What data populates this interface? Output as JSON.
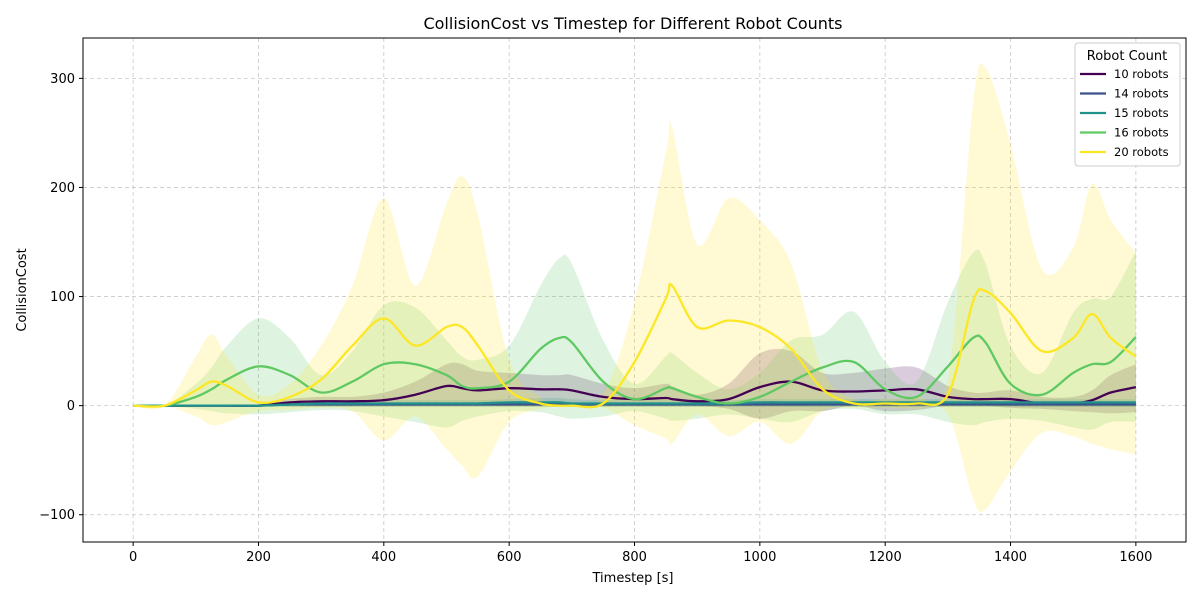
{
  "chart_data": {
    "type": "line",
    "title": "CollisionCost vs Timestep for Different Robot Counts",
    "xlabel": "Timestep [s]",
    "ylabel": "CollisionCost",
    "xlim": [
      -80,
      1680
    ],
    "ylim": [
      -125,
      337
    ],
    "xticks": [
      0,
      200,
      400,
      600,
      800,
      1000,
      1200,
      1400,
      1600
    ],
    "yticks": [
      -100,
      0,
      100,
      200,
      300
    ],
    "grid": true,
    "legend": {
      "title": "Robot Count",
      "placement": "top-right"
    },
    "x": [
      0,
      50,
      100,
      125,
      150,
      200,
      250,
      300,
      350,
      400,
      450,
      500,
      525,
      550,
      600,
      650,
      680,
      700,
      750,
      800,
      850,
      860,
      900,
      950,
      1000,
      1050,
      1100,
      1150,
      1200,
      1250,
      1300,
      1340,
      1360,
      1400,
      1450,
      1500,
      1530,
      1560,
      1600
    ],
    "series": [
      {
        "name": "10 robots",
        "color": "#440154",
        "values": [
          0,
          0,
          0,
          0,
          0,
          0,
          3,
          4,
          4,
          5,
          10,
          18,
          16,
          14,
          16,
          15,
          15,
          14,
          8,
          6,
          7,
          6,
          4,
          6,
          17,
          22,
          14,
          13,
          14,
          15,
          8,
          6,
          6,
          6,
          2,
          2,
          5,
          12,
          17
        ],
        "lower": [
          0,
          0,
          0,
          0,
          0,
          0,
          0,
          0,
          0,
          0,
          0,
          0,
          0,
          0,
          0,
          0,
          0,
          0,
          0,
          0,
          0,
          0,
          0,
          -3,
          -12,
          -5,
          -5,
          0,
          -5,
          -4,
          0,
          0,
          0,
          -2,
          -3,
          -5,
          -6,
          -7,
          -6
        ],
        "upper": [
          0,
          0,
          0,
          0,
          0,
          0,
          6,
          8,
          8,
          12,
          22,
          38,
          38,
          32,
          30,
          28,
          28,
          28,
          20,
          16,
          20,
          18,
          10,
          20,
          48,
          50,
          30,
          30,
          34,
          35,
          18,
          12,
          12,
          14,
          8,
          8,
          14,
          28,
          38
        ]
      },
      {
        "name": "14 robots",
        "color": "#3b528b",
        "values": [
          0,
          0,
          0,
          0,
          0,
          0,
          1,
          1,
          1,
          1,
          1,
          1,
          1,
          1,
          1,
          1,
          1,
          1,
          1,
          1,
          1,
          1,
          1,
          1,
          1,
          1,
          1,
          1,
          1,
          1,
          1,
          1,
          1,
          1,
          1,
          1,
          1,
          1,
          1
        ],
        "lower": [
          0,
          0,
          0,
          0,
          0,
          0,
          -1,
          -1,
          -1,
          -1,
          -1,
          -1,
          -1,
          -1,
          -1,
          -1,
          -1,
          -1,
          -1,
          -1,
          -1,
          -1,
          -1,
          -1,
          -1,
          -1,
          -1,
          -1,
          -1,
          -1,
          -1,
          -1,
          -1,
          -1,
          -1,
          -1,
          -1,
          -1,
          -1
        ],
        "upper": [
          0,
          0,
          0,
          0,
          0,
          0,
          3,
          3,
          3,
          3,
          3,
          3,
          3,
          3,
          3,
          3,
          3,
          3,
          3,
          3,
          3,
          3,
          3,
          3,
          3,
          3,
          3,
          3,
          3,
          3,
          3,
          3,
          3,
          3,
          3,
          3,
          3,
          3,
          3
        ]
      },
      {
        "name": "15 robots",
        "color": "#21918c",
        "values": [
          0,
          0,
          0,
          0,
          0,
          0,
          1,
          2,
          2,
          2,
          2,
          2,
          2,
          2,
          3,
          3,
          3,
          2,
          2,
          2,
          2,
          2,
          2,
          2,
          3,
          3,
          3,
          3,
          3,
          3,
          3,
          3,
          3,
          3,
          3,
          3,
          3,
          3,
          3
        ],
        "lower": [
          0,
          0,
          0,
          0,
          0,
          0,
          -1,
          -1,
          -1,
          -1,
          -1,
          -1,
          -1,
          -1,
          -1,
          -1,
          -1,
          -1,
          -1,
          -1,
          -1,
          -1,
          -1,
          -1,
          -1,
          -1,
          -1,
          -1,
          -1,
          -1,
          -1,
          -1,
          -1,
          -1,
          -1,
          -1,
          -1,
          -1,
          -1
        ],
        "upper": [
          0,
          0,
          0,
          0,
          0,
          0,
          4,
          5,
          5,
          5,
          5,
          5,
          5,
          5,
          6,
          7,
          7,
          6,
          5,
          5,
          5,
          5,
          5,
          5,
          6,
          6,
          6,
          6,
          6,
          6,
          6,
          6,
          6,
          6,
          6,
          6,
          6,
          6,
          6
        ]
      },
      {
        "name": "16 robots",
        "color": "#5ec962",
        "values": [
          0,
          0,
          8,
          15,
          24,
          36,
          28,
          12,
          22,
          38,
          38,
          28,
          18,
          16,
          22,
          52,
          62,
          58,
          22,
          6,
          16,
          16,
          8,
          2,
          8,
          22,
          35,
          40,
          15,
          8,
          36,
          62,
          58,
          20,
          10,
          30,
          38,
          40,
          63
        ],
        "lower": [
          0,
          0,
          -3,
          -5,
          -7,
          -8,
          -6,
          -4,
          -5,
          -10,
          -15,
          -20,
          -14,
          -10,
          -5,
          -6,
          -10,
          -12,
          -10,
          -5,
          -12,
          -14,
          -12,
          -8,
          -12,
          -15,
          -5,
          -3,
          -8,
          -8,
          -15,
          -18,
          -15,
          -12,
          -14,
          -20,
          -22,
          -15,
          -15
        ],
        "upper": [
          0,
          0,
          20,
          35,
          55,
          80,
          62,
          28,
          50,
          92,
          90,
          60,
          45,
          42,
          55,
          110,
          135,
          130,
          60,
          20,
          45,
          48,
          30,
          15,
          30,
          60,
          65,
          86,
          40,
          22,
          95,
          140,
          130,
          55,
          30,
          85,
          98,
          100,
          142
        ]
      },
      {
        "name": "20 robots",
        "color": "#fde725",
        "values": [
          0,
          0,
          14,
          22,
          18,
          3,
          8,
          24,
          55,
          80,
          55,
          72,
          72,
          55,
          14,
          2,
          0,
          0,
          2,
          40,
          98,
          110,
          72,
          78,
          72,
          52,
          15,
          2,
          2,
          2,
          10,
          95,
          105,
          85,
          50,
          62,
          84,
          62,
          45
        ],
        "lower": [
          0,
          0,
          -10,
          -18,
          -15,
          -5,
          -4,
          -2,
          -5,
          -32,
          -10,
          -40,
          -55,
          -65,
          -15,
          -3,
          -1,
          -1,
          -2,
          -18,
          -30,
          -35,
          -8,
          -28,
          -15,
          -35,
          -5,
          -2,
          -2,
          -3,
          -8,
          -85,
          -95,
          -60,
          -25,
          -28,
          -35,
          -40,
          -45
        ],
        "upper": [
          0,
          0,
          45,
          65,
          45,
          10,
          20,
          55,
          110,
          190,
          110,
          185,
          210,
          175,
          42,
          7,
          2,
          2,
          10,
          95,
          232,
          255,
          148,
          190,
          170,
          130,
          32,
          6,
          6,
          8,
          25,
          275,
          310,
          240,
          125,
          145,
          203,
          170,
          140
        ]
      }
    ]
  }
}
